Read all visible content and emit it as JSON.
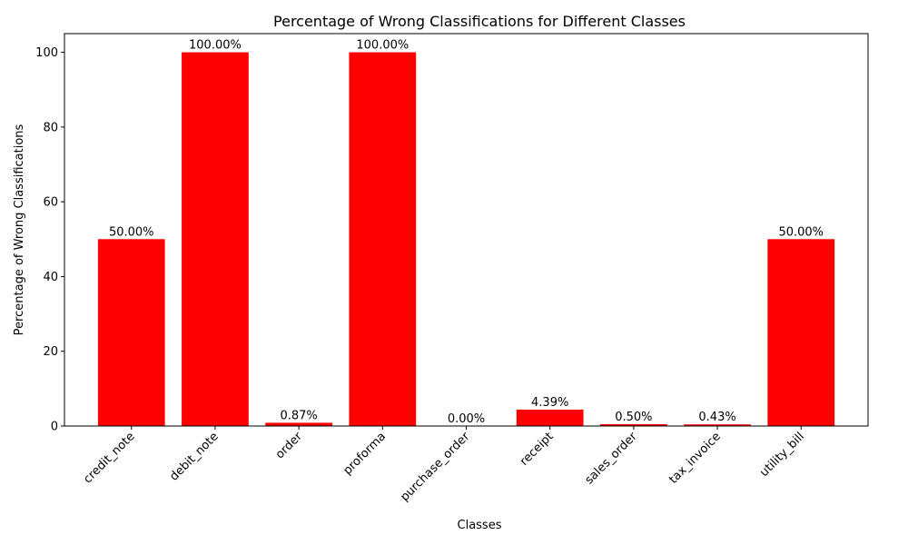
{
  "chart_data": {
    "type": "bar",
    "title": "Percentage of Wrong Classifications for Different Classes",
    "xlabel": "Classes",
    "ylabel": "Percentage of Wrong Classifications",
    "categories": [
      "credit_note",
      "debit_note",
      "order",
      "proforma",
      "purchase_order",
      "receipt",
      "sales_order",
      "tax_invoice",
      "utility_bill"
    ],
    "values": [
      50.0,
      100.0,
      0.87,
      100.0,
      0.0,
      4.39,
      0.5,
      0.43,
      50.0
    ],
    "data_labels": [
      "50.00%",
      "100.00%",
      "0.87%",
      "100.00%",
      "0.00%",
      "4.39%",
      "0.50%",
      "0.43%",
      "50.00%"
    ],
    "ylim": [
      0,
      105
    ],
    "yticks": [
      0,
      20,
      40,
      60,
      80,
      100
    ],
    "grid": false,
    "bar_color": "#ff0000"
  }
}
